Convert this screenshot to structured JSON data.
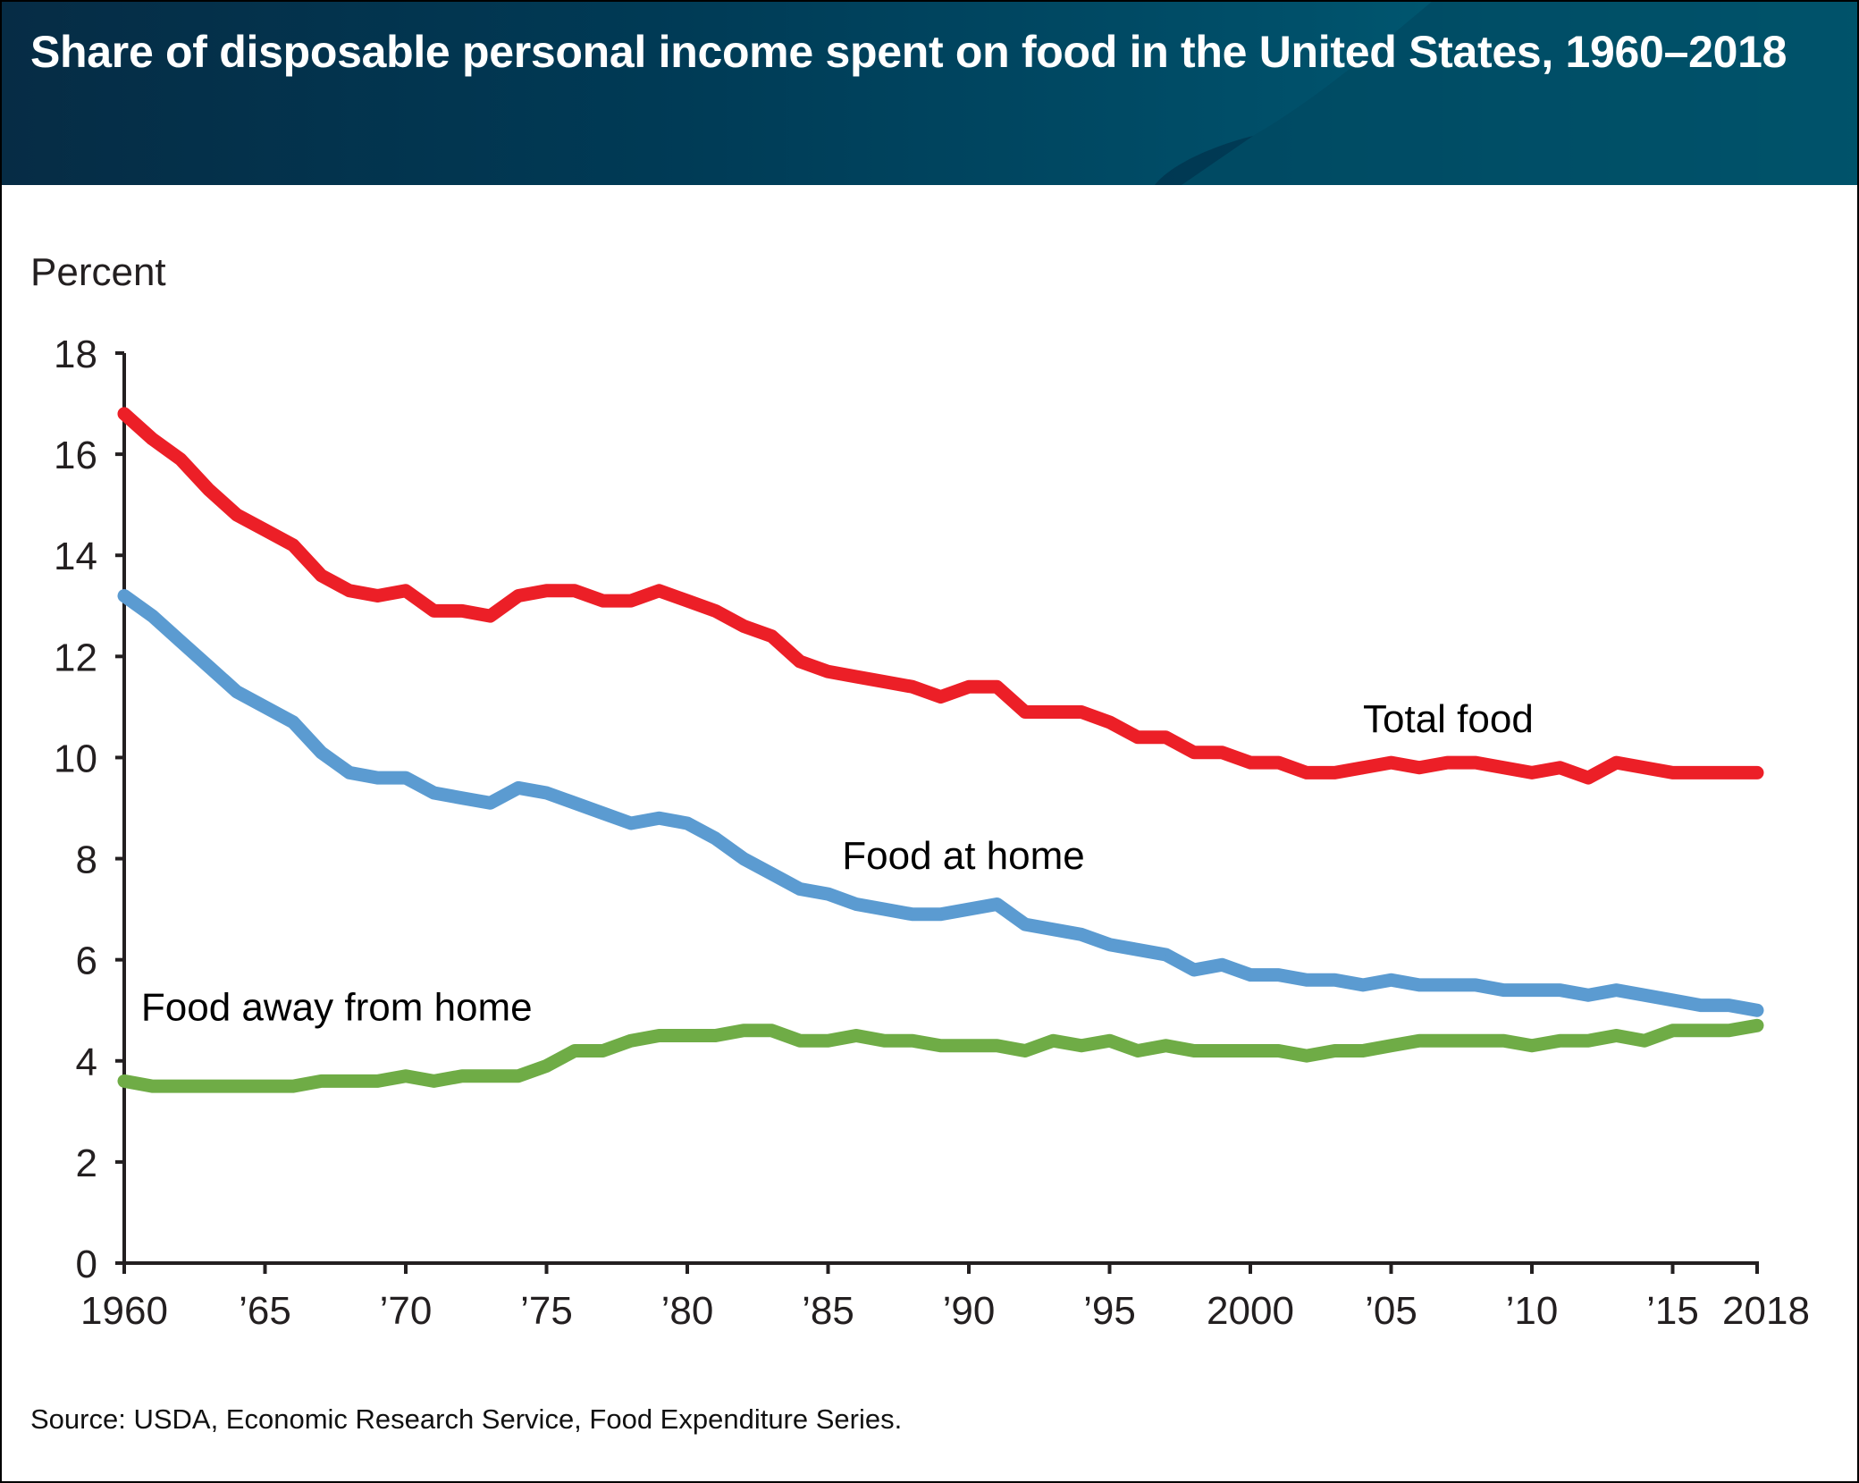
{
  "header": {
    "title": "Share of disposable personal income spent on food in the United States, 1960–2018"
  },
  "source": "Source: USDA, Economic Research Service, Food Expenditure Series.",
  "colors": {
    "header_bg": "#003a55",
    "total_food": "#ec1f27",
    "food_at_home": "#5b9bd1",
    "food_away": "#6fac46",
    "axis": "#231f20"
  },
  "chart_data": {
    "type": "line",
    "title": "Share of disposable personal income spent on food in the United States, 1960–2018",
    "xlabel": "",
    "ylabel": "Percent",
    "ylim": [
      0,
      18
    ],
    "xlim": [
      1960,
      2018
    ],
    "yticks": [
      0,
      2,
      4,
      6,
      8,
      10,
      12,
      14,
      16,
      18
    ],
    "xticks": [
      1960,
      1965,
      1970,
      1975,
      1980,
      1985,
      1990,
      1995,
      2000,
      2005,
      2010,
      2015,
      2018
    ],
    "xtick_labels": [
      "1960",
      "’65",
      "’70",
      "’75",
      "’80",
      "’85",
      "’90",
      "’95",
      "2000",
      "’05",
      "’10",
      "’15",
      "2018"
    ],
    "grid": false,
    "legend": "inline labels",
    "x": [
      1960,
      1961,
      1962,
      1963,
      1964,
      1965,
      1966,
      1967,
      1968,
      1969,
      1970,
      1971,
      1972,
      1973,
      1974,
      1975,
      1976,
      1977,
      1978,
      1979,
      1980,
      1981,
      1982,
      1983,
      1984,
      1985,
      1986,
      1987,
      1988,
      1989,
      1990,
      1991,
      1992,
      1993,
      1994,
      1995,
      1996,
      1997,
      1998,
      1999,
      2000,
      2001,
      2002,
      2003,
      2004,
      2005,
      2006,
      2007,
      2008,
      2009,
      2010,
      2011,
      2012,
      2013,
      2014,
      2015,
      2016,
      2017,
      2018
    ],
    "series": [
      {
        "name": "Total food",
        "label": "Total food",
        "color": "#ec1f27",
        "label_at": [
          2004,
          10.5
        ],
        "values": [
          16.8,
          16.3,
          15.9,
          15.3,
          14.8,
          14.5,
          14.2,
          13.6,
          13.3,
          13.2,
          13.3,
          12.9,
          12.9,
          12.8,
          13.2,
          13.3,
          13.3,
          13.1,
          13.1,
          13.3,
          13.1,
          12.9,
          12.6,
          12.4,
          11.9,
          11.7,
          11.6,
          11.5,
          11.4,
          11.2,
          11.4,
          11.4,
          10.9,
          10.9,
          10.9,
          10.7,
          10.4,
          10.4,
          10.1,
          10.1,
          9.9,
          9.9,
          9.7,
          9.7,
          9.8,
          9.9,
          9.8,
          9.9,
          9.9,
          9.8,
          9.7,
          9.8,
          9.6,
          9.9,
          9.8,
          9.7,
          9.7,
          9.7,
          9.7
        ]
      },
      {
        "name": "Food at home",
        "label": "Food at home",
        "color": "#5b9bd1",
        "label_at": [
          1985.5,
          7.8
        ],
        "values": [
          13.2,
          12.8,
          12.3,
          11.8,
          11.3,
          11.0,
          10.7,
          10.1,
          9.7,
          9.6,
          9.6,
          9.3,
          9.2,
          9.1,
          9.4,
          9.3,
          9.1,
          8.9,
          8.7,
          8.8,
          8.7,
          8.4,
          8.0,
          7.7,
          7.4,
          7.3,
          7.1,
          7.0,
          6.9,
          6.9,
          7.0,
          7.1,
          6.7,
          6.6,
          6.5,
          6.3,
          6.2,
          6.1,
          5.8,
          5.9,
          5.7,
          5.7,
          5.6,
          5.6,
          5.5,
          5.6,
          5.5,
          5.5,
          5.5,
          5.4,
          5.4,
          5.4,
          5.3,
          5.4,
          5.3,
          5.2,
          5.1,
          5.1,
          5.0
        ]
      },
      {
        "name": "Food away from home",
        "label": "Food away from home",
        "color": "#6fac46",
        "label_at": [
          1960.6,
          4.8
        ],
        "values": [
          3.6,
          3.5,
          3.5,
          3.5,
          3.5,
          3.5,
          3.5,
          3.6,
          3.6,
          3.6,
          3.7,
          3.6,
          3.7,
          3.7,
          3.7,
          3.9,
          4.2,
          4.2,
          4.4,
          4.5,
          4.5,
          4.5,
          4.6,
          4.6,
          4.4,
          4.4,
          4.5,
          4.4,
          4.4,
          4.3,
          4.3,
          4.3,
          4.2,
          4.4,
          4.3,
          4.4,
          4.2,
          4.3,
          4.2,
          4.2,
          4.2,
          4.2,
          4.1,
          4.2,
          4.2,
          4.3,
          4.4,
          4.4,
          4.4,
          4.4,
          4.3,
          4.4,
          4.4,
          4.5,
          4.4,
          4.6,
          4.6,
          4.6,
          4.7
        ]
      }
    ]
  }
}
